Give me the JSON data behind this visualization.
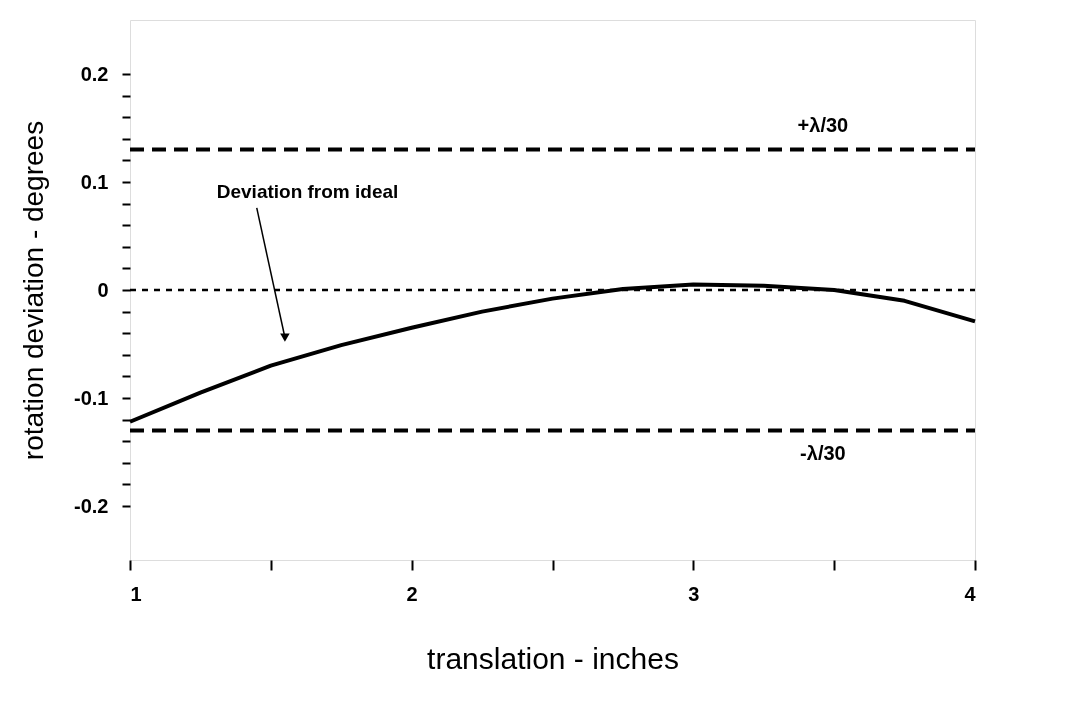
{
  "chart_data": {
    "type": "line",
    "xlabel": "translation - inches",
    "ylabel": "rotation deviation - degrees",
    "x": [
      1,
      1.25,
      1.5,
      1.75,
      2,
      2.25,
      2.5,
      2.75,
      3,
      3.25,
      3.5,
      3.75,
      4
    ],
    "series": [
      {
        "color": "#000000",
        "values": [
          -0.122,
          -0.095,
          -0.07,
          -0.051,
          -0.035,
          -0.02,
          -0.008,
          0.001,
          0.005,
          0.004,
          0,
          -0.01,
          -0.029
        ]
      }
    ],
    "xlim": [
      1,
      4
    ],
    "ylim": [
      -0.25,
      0.25
    ],
    "xticks": [
      1,
      {
        "value": 1.5,
        "label": null
      },
      2,
      {
        "value": 2.5,
        "label": null
      },
      3,
      {
        "value": 3.5,
        "label": null
      },
      4
    ],
    "yticks": [
      -0.2,
      {
        "value": -0.18,
        "label": null
      },
      {
        "value": -0.16,
        "label": null
      },
      {
        "value": -0.14,
        "label": null
      },
      {
        "value": -0.12,
        "label": null
      },
      -0.1,
      {
        "value": -0.08,
        "label": null
      },
      {
        "value": -0.06,
        "label": null
      },
      {
        "value": -0.04,
        "label": null
      },
      {
        "value": -0.02,
        "label": null
      },
      0,
      {
        "value": 0.02,
        "label": null
      },
      {
        "value": 0.04,
        "label": null
      },
      {
        "value": 0.06,
        "label": null
      },
      {
        "value": 0.08,
        "label": null
      },
      0.1,
      {
        "value": 0.12,
        "label": null
      },
      {
        "value": 0.14,
        "label": null
      },
      {
        "value": 0.16,
        "label": null
      },
      {
        "value": 0.18,
        "label": null
      },
      0.2
    ],
    "ref_lines": [
      {
        "axis": "y",
        "value": 0.13,
        "label": "+λ/30",
        "line_style": "dashed"
      },
      {
        "axis": "y",
        "value": 0,
        "label": null,
        "line_style": "dotted"
      },
      {
        "axis": "y",
        "value": -0.13,
        "label": "-λ/30",
        "line_style": "dashed"
      }
    ],
    "annotations": [
      {
        "text": "Deviation from ideal",
        "x": 1.55,
        "y": -0.044
      }
    ],
    "grid": false,
    "marker": "none",
    "line_style": "solid"
  }
}
